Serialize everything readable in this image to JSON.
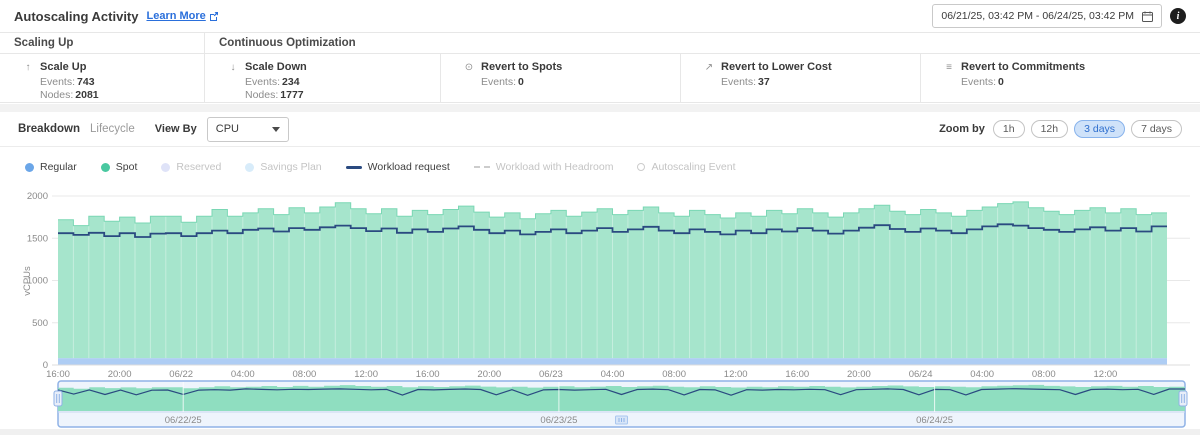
{
  "header": {
    "title": "Autoscaling Activity",
    "learn_more": "Learn More",
    "date_range": "06/21/25, 03:42 PM - 06/24/25, 03:42 PM",
    "info_glyph": "i"
  },
  "metrics": {
    "group_titles": [
      "Scaling Up",
      "Continuous Optimization"
    ],
    "cards": [
      {
        "label": "Scale Up",
        "icon": "scale-up-arrow-icon",
        "icon_glyph": "↑",
        "stats": [
          {
            "k": "Events:",
            "v": "743"
          },
          {
            "k": "Nodes:",
            "v": "2081"
          }
        ]
      },
      {
        "label": "Scale Down",
        "icon": "scale-down-arrow-icon",
        "icon_glyph": "↓",
        "stats": [
          {
            "k": "Events:",
            "v": "234"
          },
          {
            "k": "Nodes:",
            "v": "1777"
          }
        ]
      },
      {
        "label": "Revert to Spots",
        "icon": "spot-icon",
        "icon_glyph": "⊙",
        "stats": [
          {
            "k": "Events:",
            "v": "0"
          }
        ]
      },
      {
        "label": "Revert to Lower Cost",
        "icon": "lower-cost-icon",
        "icon_glyph": "↗",
        "stats": [
          {
            "k": "Events:",
            "v": "37"
          }
        ]
      },
      {
        "label": "Revert to Commitments",
        "icon": "commitments-icon",
        "icon_glyph": "≡",
        "stats": [
          {
            "k": "Events:",
            "v": "0"
          }
        ]
      }
    ]
  },
  "controls": {
    "tabs": [
      {
        "label": "Breakdown",
        "active": true
      },
      {
        "label": "Lifecycle",
        "active": false
      }
    ],
    "view_by_label": "View By",
    "view_by_value": "CPU",
    "zoom_label": "Zoom by",
    "zoom_options": [
      {
        "label": "1h",
        "active": false
      },
      {
        "label": "12h",
        "active": false
      },
      {
        "label": "3 days",
        "active": true
      },
      {
        "label": "7 days",
        "active": false
      }
    ]
  },
  "legend": [
    {
      "label": "Regular",
      "swatch": "dot",
      "color": "#6ba6e8",
      "active": true
    },
    {
      "label": "Spot",
      "swatch": "dot",
      "color": "#49c8a0",
      "active": true
    },
    {
      "label": "Reserved",
      "swatch": "dot",
      "color": "#dfe3f8",
      "active": false
    },
    {
      "label": "Savings Plan",
      "swatch": "dot",
      "color": "#d8ecfa",
      "active": false
    },
    {
      "label": "Workload request",
      "swatch": "line",
      "color": "#2a4a80",
      "active": true
    },
    {
      "label": "Workload with Headroom",
      "swatch": "dash",
      "color": "#cccccc",
      "active": false
    },
    {
      "label": "Autoscaling Event",
      "swatch": "ring",
      "color": "#cccccc",
      "active": false
    }
  ],
  "chart_data": {
    "type": "area",
    "ylabel": "vCPUs",
    "ylim": [
      0,
      2000
    ],
    "y_ticks": [
      0,
      500,
      1000,
      1500,
      2000
    ],
    "hours_span": 72,
    "x_tick_hours": [
      0,
      4,
      8,
      12,
      16,
      20,
      24,
      28,
      32,
      36,
      40,
      44,
      48,
      52,
      56,
      60,
      64,
      68
    ],
    "x_tick_labels": [
      "16:00",
      "20:00",
      "06/22",
      "04:00",
      "08:00",
      "12:00",
      "16:00",
      "20:00",
      "06/23",
      "04:00",
      "08:00",
      "12:00",
      "16:00",
      "20:00",
      "06/24",
      "04:00",
      "08:00",
      "12:00"
    ],
    "grid": true,
    "legend_position": "top-left",
    "series": [
      {
        "name": "Regular",
        "type": "area",
        "color": "#aecdf4",
        "constant_value": 80
      },
      {
        "name": "Spot",
        "type": "area-stacked",
        "color": "#a6e5cc",
        "edge_color": "#7ad7b4",
        "stack_top_values": [
          1720,
          1650,
          1760,
          1700,
          1750,
          1680,
          1760,
          1760,
          1690,
          1760,
          1840,
          1760,
          1800,
          1850,
          1780,
          1860,
          1800,
          1870,
          1920,
          1850,
          1790,
          1850,
          1760,
          1830,
          1780,
          1840,
          1880,
          1810,
          1750,
          1800,
          1730,
          1790,
          1830,
          1760,
          1810,
          1850,
          1780,
          1830,
          1870,
          1800,
          1760,
          1830,
          1780,
          1740,
          1800,
          1760,
          1830,
          1790,
          1850,
          1800,
          1750,
          1800,
          1850,
          1890,
          1820,
          1780,
          1840,
          1800,
          1760,
          1830,
          1870,
          1910,
          1930,
          1860,
          1820,
          1780,
          1830,
          1860,
          1800,
          1850,
          1780,
          1800
        ]
      },
      {
        "name": "Workload request",
        "type": "step-line",
        "color": "#2a4a80",
        "values": [
          1560,
          1540,
          1565,
          1525,
          1560,
          1515,
          1555,
          1560,
          1525,
          1560,
          1590,
          1560,
          1600,
          1615,
          1580,
          1620,
          1600,
          1630,
          1650,
          1620,
          1585,
          1615,
          1565,
          1605,
          1575,
          1615,
          1640,
          1600,
          1560,
          1590,
          1545,
          1575,
          1605,
          1560,
          1590,
          1620,
          1575,
          1605,
          1635,
          1590,
          1560,
          1605,
          1575,
          1545,
          1590,
          1560,
          1605,
          1580,
          1620,
          1590,
          1555,
          1590,
          1625,
          1655,
          1610,
          1575,
          1615,
          1590,
          1560,
          1605,
          1640,
          1665,
          1650,
          1620,
          1600,
          1575,
          1605,
          1630,
          1590,
          1620,
          1580,
          1640
        ]
      }
    ],
    "navigator": {
      "line_values": [
        1560,
        1250,
        1560,
        1220,
        1550,
        1200,
        1540,
        1555,
        1230,
        1550,
        1580,
        1550,
        1640,
        1600,
        1570,
        1610,
        1590,
        1620,
        1640,
        1610,
        1570,
        1600,
        1180,
        1590,
        1560,
        1600,
        1630,
        1590,
        1200,
        1580,
        1160,
        1560,
        1590,
        1550,
        1580,
        1610,
        1220,
        1590,
        1620,
        1580,
        1190,
        1590,
        1560,
        1170,
        1580,
        1550,
        1590,
        1570,
        1610,
        1580,
        1210,
        1580,
        1610,
        1640,
        1590,
        1200,
        1600,
        1580,
        1190,
        1590,
        1620,
        1650,
        1630,
        1600,
        1580,
        1220,
        1590,
        1620,
        1580,
        1610,
        1230,
        1630
      ],
      "labels": [
        {
          "hour": 8,
          "label": "06/22/25"
        },
        {
          "hour": 32,
          "label": "06/23/25"
        },
        {
          "hour": 56,
          "label": "06/24/25"
        }
      ],
      "area_color": "#8fdec0",
      "line_color": "#2a4a80",
      "border_color": "#8fb2e6"
    }
  }
}
